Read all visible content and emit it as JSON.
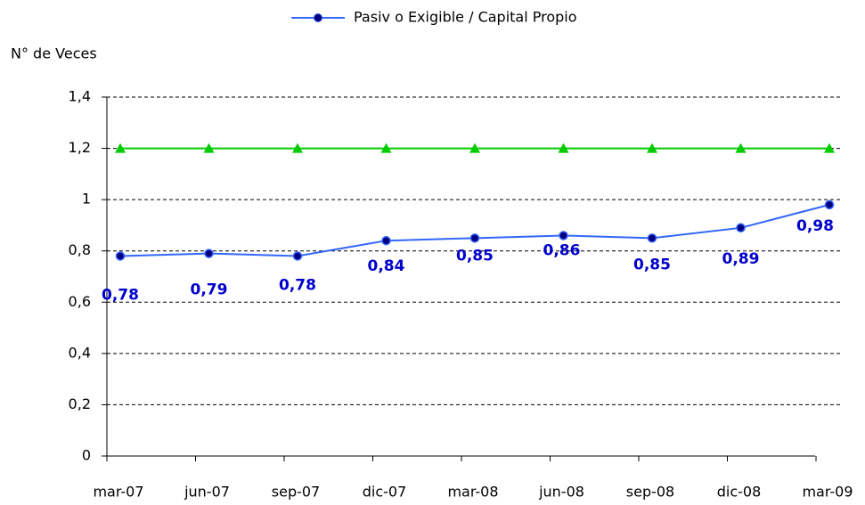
{
  "chart_data": {
    "type": "line",
    "legend_label": "Pasiv o Exigible / Capital Propio",
    "ylabel": "N° de Veces",
    "categories": [
      "mar-07",
      "jun-07",
      "sep-07",
      "dic-07",
      "mar-08",
      "jun-08",
      "sep-08",
      "dic-08",
      "mar-09"
    ],
    "series": [
      {
        "name": "Pasiv o Exigible / Capital Propio",
        "color": "#3366ff",
        "marker_color": "#000080",
        "values": [
          0.78,
          0.79,
          0.78,
          0.84,
          0.85,
          0.86,
          0.85,
          0.89,
          0.98
        ],
        "value_labels": [
          "0,78",
          "0,79",
          "0,78",
          "0,84",
          "0,85",
          "0,86",
          "0,85",
          "0,89",
          "0,98"
        ]
      },
      {
        "color": "#00cc00",
        "values": [
          1.2,
          1.2,
          1.2,
          1.2,
          1.2,
          1.2,
          1.2,
          1.2,
          1.2
        ]
      }
    ],
    "ylim": [
      0,
      1.4
    ],
    "yticks": [
      0,
      {
        "value": 0.2,
        "label": "0,2"
      },
      {
        "value": 0.4,
        "label": "0,4"
      },
      {
        "value": 0.6,
        "label": "0,6"
      },
      {
        "value": 0.8,
        "label": "0,8"
      },
      1,
      {
        "value": 1.2,
        "label": "1,2"
      },
      {
        "value": 1.4,
        "label": "1,4"
      }
    ],
    "grid": true
  }
}
